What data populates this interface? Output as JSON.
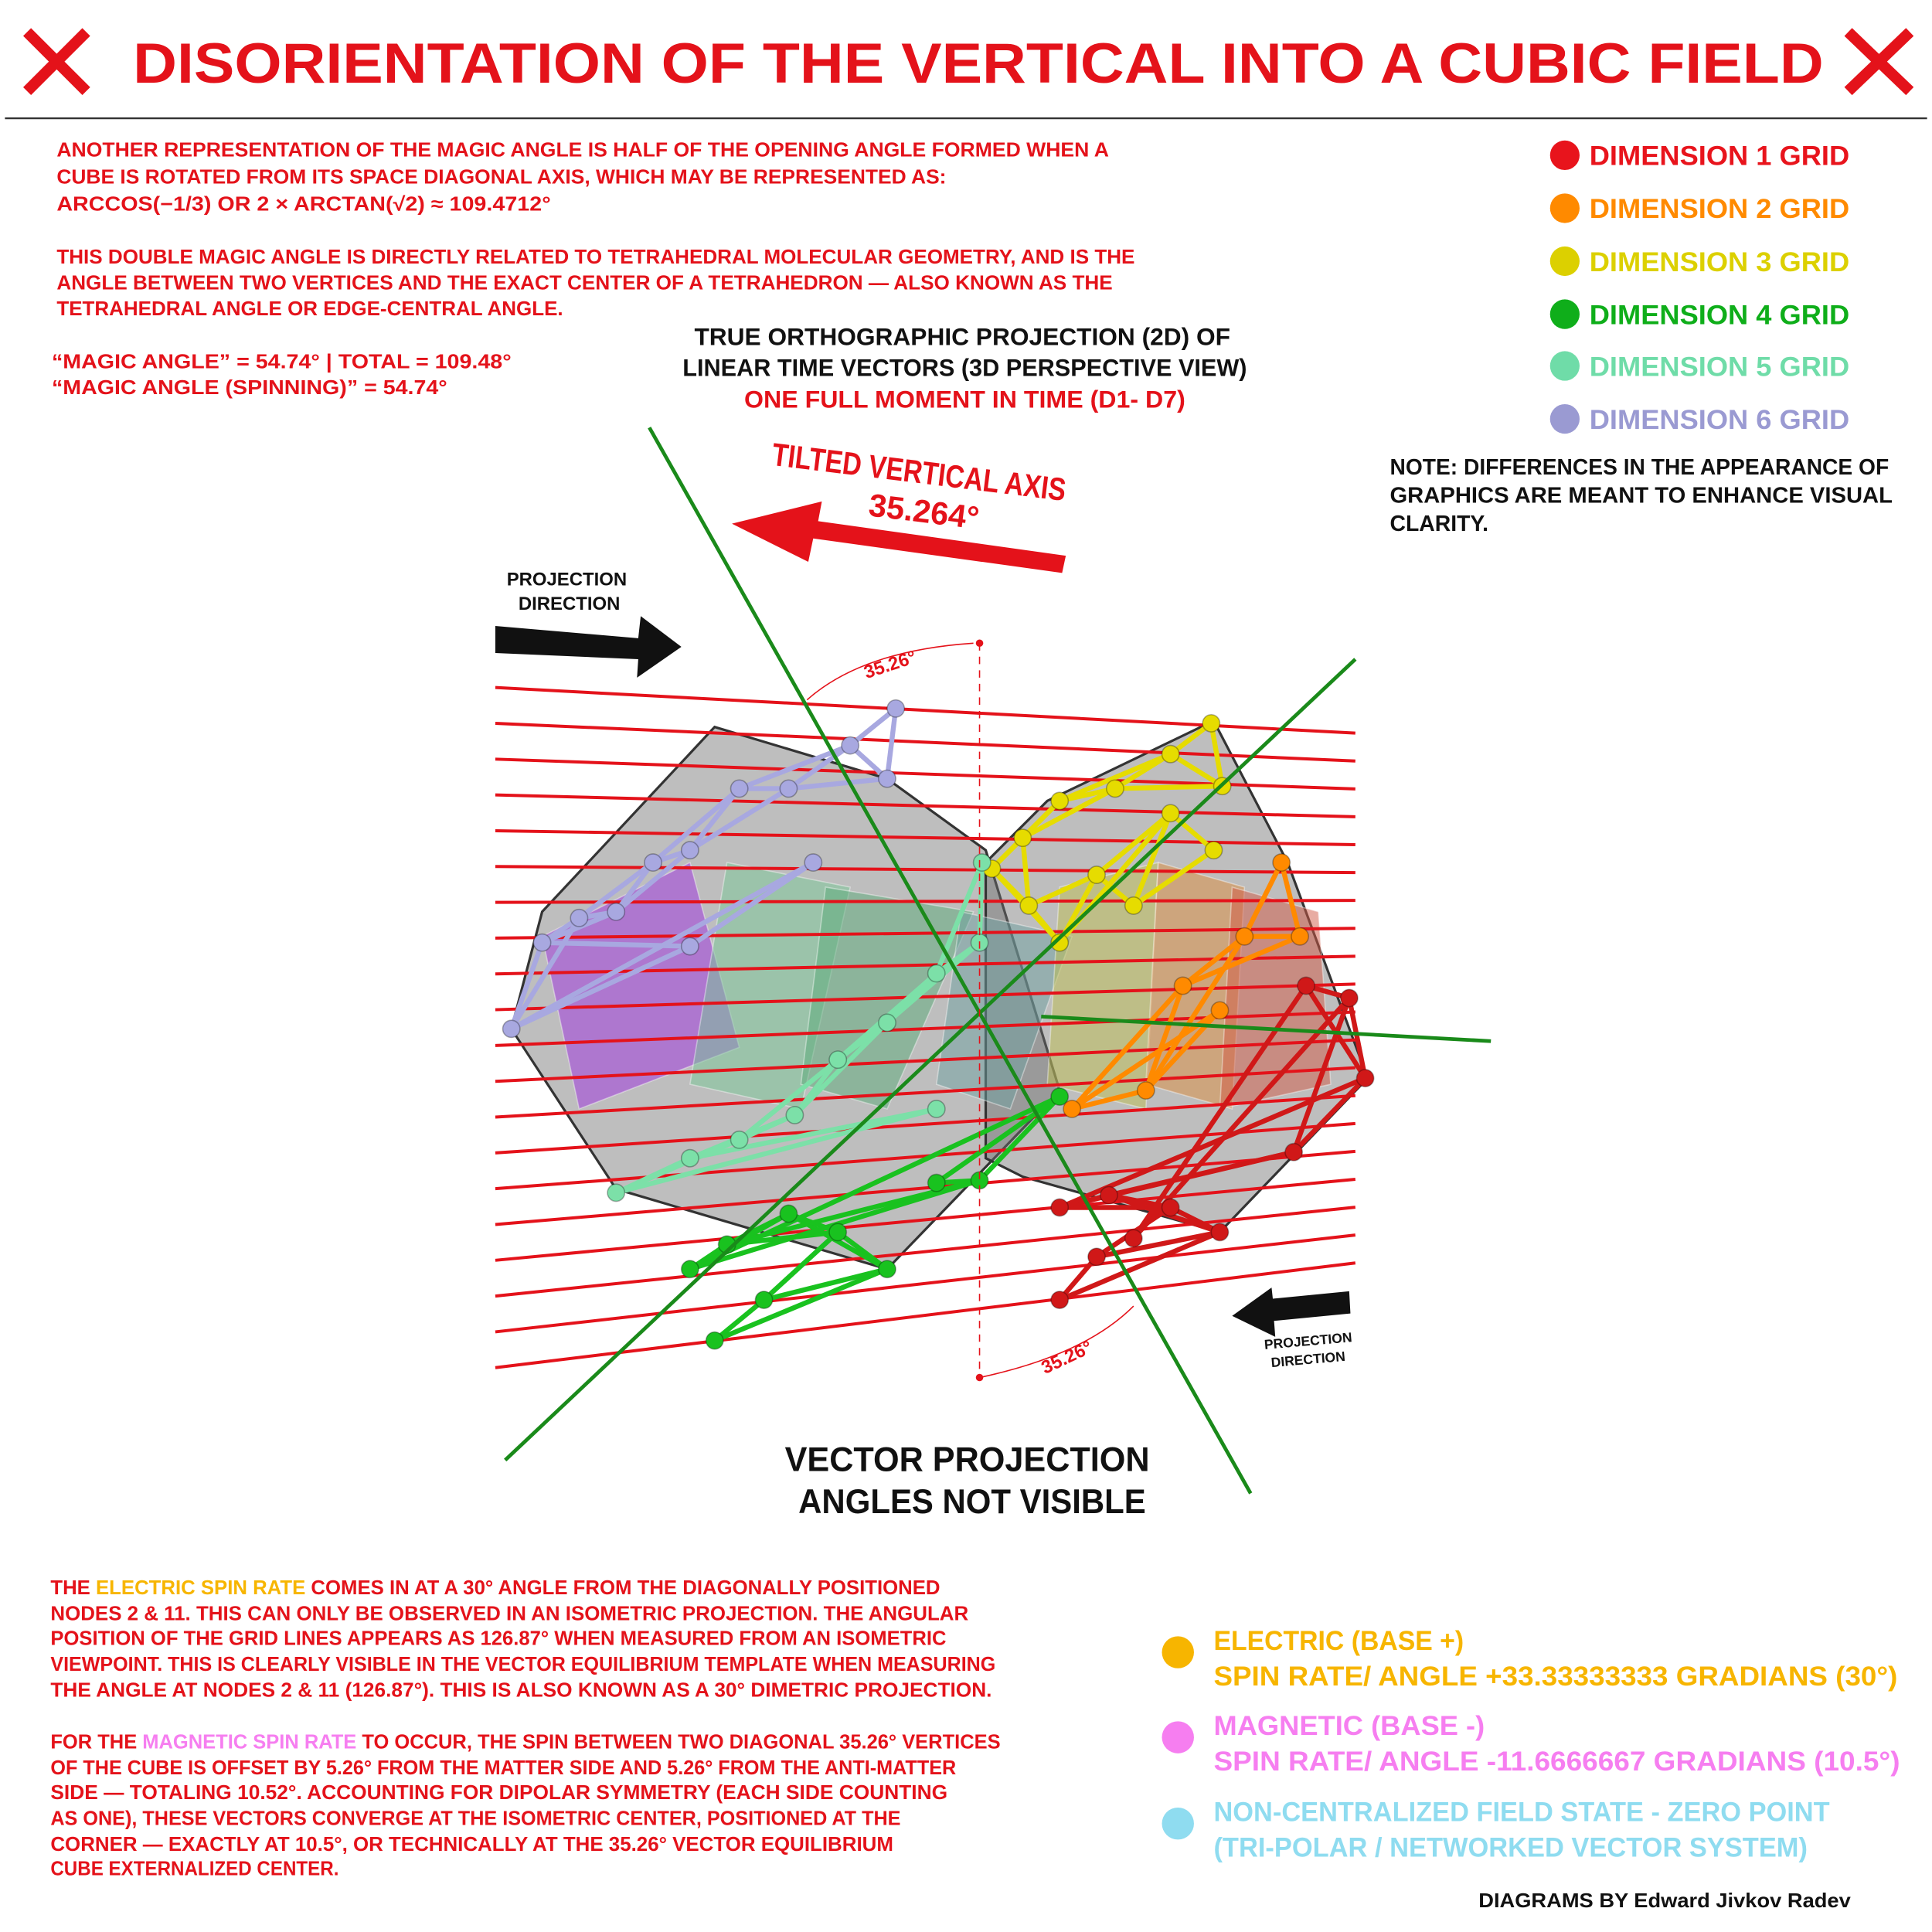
{
  "title": "DISORIENTATION OF THE VERTICAL INTO A CUBIC FIELD",
  "colors": {
    "red": "#e4121a",
    "electric": "#f7b500",
    "magnetic": "#f67ef0",
    "zero_point": "#8fdcf0"
  },
  "intro": {
    "para1": [
      "ANOTHER REPRESENTATION OF THE MAGIC ANGLE IS HALF OF THE OPENING ANGLE FORMED WHEN A",
      "CUBE IS ROTATED FROM ITS SPACE DIAGONAL AXIS, WHICH MAY BE REPRESENTED AS:",
      "ARCCOS(−1/3) OR 2 × ARCTAN(√2) ≈ 109.4712°"
    ],
    "para2": [
      "THIS DOUBLE MAGIC ANGLE IS DIRECTLY RELATED TO TETRAHEDRAL MOLECULAR GEOMETRY, AND IS THE",
      "ANGLE BETWEEN TWO VERTICES AND THE EXACT CENTER OF A TETRAHEDRON — ALSO KNOWN AS THE",
      "TETRAHEDRAL ANGLE OR EDGE-CENTRAL ANGLE."
    ],
    "magic": [
      "“MAGIC ANGLE” = 54.74° | TOTAL = 109.48°",
      "“MAGIC ANGLE (SPINNING)” = 54.74°"
    ]
  },
  "legend": [
    {
      "label": "DIMENSION 1 GRID",
      "color": "#e8141c"
    },
    {
      "label": "DIMENSION 2 GRID",
      "color": "#ff8a00"
    },
    {
      "label": "DIMENSION 3 GRID",
      "color": "#dcd000"
    },
    {
      "label": "DIMENSION 4 GRID",
      "color": "#0fae1a"
    },
    {
      "label": "DIMENSION 5 GRID",
      "color": "#6fdca8"
    },
    {
      "label": "DIMENSION 6 GRID",
      "color": "#9a9ad2"
    }
  ],
  "note": [
    "NOTE: DIFFERENCES IN THE APPEARANCE OF",
    "GRAPHICS ARE MEANT TO ENHANCE VISUAL",
    "CLARITY."
  ],
  "diagram": {
    "heading": [
      "TRUE ORTHOGRAPHIC PROJECTION (2D) OF",
      "LINEAR TIME VECTORS (3D PERSPECTIVE VIEW)"
    ],
    "subheading": "ONE FULL MOMENT IN TIME (D1- D7)",
    "tilted_axis_label": "TILTED VERTICAL AXIS",
    "tilted_axis_angle": "35.264°",
    "projection_direction": [
      "PROJECTION",
      "DIRECTION"
    ],
    "angle_top": "35.26°",
    "angle_bottom": "35.26°",
    "footer": [
      "VECTOR PROJECTION",
      "ANGLES NOT VISIBLE"
    ]
  },
  "bottom": {
    "para1_first": {
      "pre": "THE ",
      "hl": "ELECTRIC SPIN RATE",
      "post": " COMES IN AT A 30° ANGLE FROM THE DIAGONALLY POSITIONED"
    },
    "para1": [
      "NODES 2 & 11. THIS CAN ONLY BE OBSERVED IN AN ISOMETRIC PROJECTION. THE ANGULAR",
      "POSITION OF THE GRID LINES APPEARS AS 126.87° WHEN MEASURED FROM AN ISOMETRIC",
      "VIEWPOINT. THIS IS CLEARLY VISIBLE IN THE VECTOR EQUILIBRIUM TEMPLATE WHEN MEASURING",
      "THE ANGLE AT NODES 2 & 11 (126.87°). THIS IS ALSO KNOWN AS A 30° DIMETRIC PROJECTION."
    ],
    "para2_first": {
      "pre": "FOR THE ",
      "hl": "MAGNETIC SPIN RATE",
      "post": " TO OCCUR, THE SPIN BETWEEN TWO DIAGONAL 35.26° VERTICES"
    },
    "para2": [
      "OF THE CUBE IS OFFSET BY 5.26° FROM THE MATTER SIDE AND 5.26° FROM THE ANTI-MATTER",
      "SIDE — TOTALING 10.52°. ACCOUNTING FOR DIPOLAR SYMMETRY (EACH SIDE COUNTING",
      "AS ONE), THESE VECTORS CONVERGE AT THE ISOMETRIC CENTER, POSITIONED AT THE",
      "CORNER — EXACTLY AT 10.5°, OR TECHNICALLY AT THE 35.26° VECTOR EQUILIBRIUM",
      "CUBE EXTERNALIZED CENTER."
    ]
  },
  "spin_legend": [
    {
      "lines": [
        "ELECTRIC (BASE +)",
        "SPIN RATE/ ANGLE +33.33333333 GRADIANS (30°)"
      ],
      "color": "#f7b500"
    },
    {
      "lines": [
        "MAGNETIC (BASE -)",
        "SPIN RATE/ ANGLE -11.6666667 GRADIANS (10.5°)"
      ],
      "color": "#f67ef0"
    },
    {
      "lines": [
        "NON-CENTRALIZED FIELD STATE - ZERO POINT",
        "(TRI-POLAR / NETWORKED VECTOR SYSTEM)"
      ],
      "color": "#8fdcf0"
    }
  ],
  "credit": "DIAGRAMS BY Edward Jivkov Radev"
}
